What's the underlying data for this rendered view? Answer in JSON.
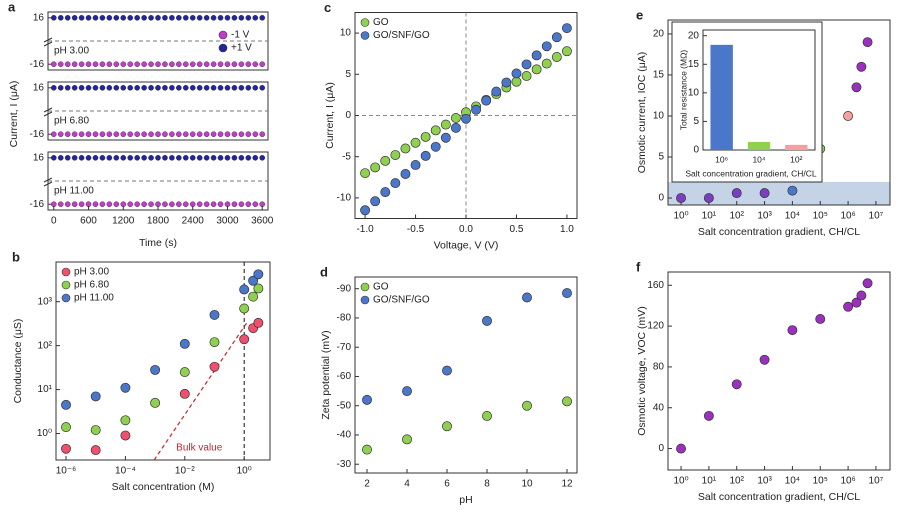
{
  "chart_data": [
    {
      "type": "strips",
      "panel": "a",
      "xlabel": "Time (s)",
      "ylabel": "Current, I (μA)",
      "xlim": [
        -100,
        3700
      ],
      "xticks": [
        0,
        600,
        1200,
        1800,
        2400,
        3000,
        3600
      ],
      "ylim": [
        -20,
        20
      ],
      "yticks": [
        -16,
        16
      ],
      "legend": "upper right",
      "x": [
        0,
        120,
        240,
        360,
        480,
        600,
        720,
        840,
        960,
        1080,
        1200,
        1320,
        1440,
        1560,
        1680,
        1800,
        1920,
        2040,
        2160,
        2280,
        2400,
        2520,
        2640,
        2760,
        2880,
        3000,
        3120,
        3240,
        3360,
        3480,
        3600
      ],
      "series": [
        {
          "name": "-1 V",
          "color": "#c23ccb"
        },
        {
          "name": "+1 V",
          "color": "#24249c"
        }
      ],
      "strips": [
        {
          "label": "pH 3.00",
          "values": [
            [
              -16,
              -16,
              -16,
              -16,
              -16,
              -16,
              -16,
              -16,
              -16,
              -16,
              -16,
              -16,
              -16,
              -16,
              -16,
              -16,
              -16,
              -16,
              -16,
              -16,
              -16,
              -16,
              -16,
              -16,
              -16,
              -16,
              -16,
              -16,
              -16,
              -16,
              -16
            ],
            [
              16,
              16,
              16,
              16,
              16,
              16,
              16,
              16,
              16,
              16,
              16,
              16,
              16,
              16,
              16,
              16,
              16,
              16,
              16,
              16,
              16,
              16,
              16,
              16,
              16,
              16,
              16,
              16,
              16,
              16,
              16
            ]
          ]
        },
        {
          "label": "pH 6.80",
          "values": [
            [
              -16,
              -16,
              -16,
              -16,
              -16,
              -16,
              -16,
              -16,
              -16,
              -16,
              -16,
              -16,
              -16,
              -16,
              -16,
              -16,
              -16,
              -16,
              -16,
              -16,
              -16,
              -16,
              -16,
              -16,
              -16,
              -16,
              -16,
              -16,
              -16,
              -16,
              -16
            ],
            [
              16,
              16,
              16,
              16,
              16,
              16,
              16,
              16,
              16,
              16,
              16,
              16,
              16,
              16,
              16,
              16,
              16,
              16,
              16,
              16,
              16,
              16,
              16,
              16,
              16,
              16,
              16,
              16,
              16,
              16,
              16
            ]
          ]
        },
        {
          "label": "pH 11.00",
          "values": [
            [
              -16,
              -16,
              -16,
              -16,
              -16,
              -16,
              -16,
              -16,
              -16,
              -16,
              -16,
              -16,
              -16,
              -16,
              -16,
              -16,
              -16,
              -16,
              -16,
              -16,
              -16,
              -16,
              -16,
              -16,
              -16,
              -16,
              -16,
              -16,
              -16,
              -16,
              -16
            ],
            [
              16,
              16,
              16,
              16,
              16,
              16,
              16,
              16,
              16,
              16,
              16,
              16,
              16,
              16,
              16,
              16,
              16,
              16,
              16,
              16,
              16,
              16,
              16,
              16,
              16,
              16,
              16,
              16,
              16,
              16,
              16
            ]
          ]
        }
      ]
    },
    {
      "type": "scatter",
      "panel": "b",
      "xlabel": "Salt concentration (M)",
      "ylabel": "Conductance (μS)",
      "xlog": true,
      "ylog": true,
      "xlim": [
        4.6e-07,
        7.4
      ],
      "ylim": [
        0.25,
        8000
      ],
      "xticks": [
        {
          "value": 1e-06,
          "label": "10⁻⁶"
        },
        {
          "value": 0.0001,
          "label": "10⁻⁴"
        },
        {
          "value": 0.01,
          "label": "10⁻²"
        },
        {
          "value": 1,
          "label": "10⁰"
        }
      ],
      "yticks": [
        {
          "value": 1,
          "label": "10⁰"
        },
        {
          "value": 10,
          "label": "10¹"
        },
        {
          "value": 100,
          "label": "10²"
        },
        {
          "value": 1000,
          "label": "10³"
        }
      ],
      "legend": "upper left",
      "vlines": [
        1
      ],
      "x": [
        1e-06,
        1e-05,
        0.0001,
        0.001,
        0.01,
        0.1,
        1,
        2,
        3
      ],
      "series": [
        {
          "name": "pH 3.00",
          "color": "#f0506e",
          "values": [
            0.45,
            0.42,
            0.9,
            null,
            8,
            33,
            140,
            250,
            330
          ]
        },
        {
          "name": "pH 6.80",
          "color": "#8fd14f",
          "values": [
            1.4,
            1.2,
            2,
            5,
            25,
            120,
            700,
            1300,
            2000
          ]
        },
        {
          "name": "pH 11.00",
          "color": "#4a77c9",
          "values": [
            4.5,
            7,
            11,
            28,
            110,
            500,
            1900,
            3000,
            4200
          ]
        }
      ],
      "lines": [
        {
          "label": "Bulk value",
          "color": "#c0282d",
          "x": [
            0.00093,
            1.2
          ],
          "values": [
            0.25,
            324
          ]
        }
      ]
    },
    {
      "type": "scatter",
      "panel": "c",
      "xlabel": "Voltage, V (V)",
      "ylabel": "Current, I (μA)",
      "xlim": [
        -1.1,
        1.1
      ],
      "ylim": [
        -12.5,
        12.5
      ],
      "xticks": [
        {
          "value": -1,
          "label": "-1.0"
        },
        -0.5,
        {
          "value": 0,
          "label": "0.0"
        },
        0.5,
        {
          "value": 1,
          "label": "1.0"
        }
      ],
      "yticks": [
        -10,
        -5,
        0,
        5,
        10
      ],
      "legend": "upper left",
      "hlines": [
        0
      ],
      "vlines": [
        0
      ],
      "x": [
        -1,
        -0.9,
        -0.8,
        -0.7,
        -0.6,
        -0.5,
        -0.4,
        -0.3,
        -0.2,
        -0.1,
        0,
        0.1,
        0.2,
        0.3,
        0.4,
        0.5,
        0.6,
        0.7,
        0.8,
        0.9,
        1
      ],
      "series": [
        {
          "name": "GO",
          "color": "#8fd14f",
          "values": [
            -7.0,
            -6.3,
            -5.5,
            -4.8,
            -4.0,
            -3.3,
            -2.6,
            -1.8,
            -1.1,
            -0.3,
            0.4,
            1.1,
            1.9,
            2.6,
            3.4,
            4.1,
            4.8,
            5.6,
            6.3,
            7.1,
            7.8
          ]
        },
        {
          "name": "GO/SNF/GO",
          "color": "#4a77c9",
          "values": [
            -11.5,
            -10.4,
            -9.3,
            -8.2,
            -7.1,
            -6.0,
            -4.9,
            -3.8,
            -2.7,
            -1.5,
            -0.4,
            0.7,
            1.8,
            2.9,
            4.0,
            5.1,
            6.2,
            7.3,
            8.4,
            9.5,
            10.6
          ]
        }
      ]
    },
    {
      "type": "scatter",
      "panel": "d",
      "xlabel": "pH",
      "ylabel": "Zeta potential (mV)",
      "xlim": [
        1.4,
        12.5
      ],
      "ylim": [
        -27,
        -94
      ],
      "xticks": [
        2,
        4,
        6,
        8,
        10,
        12
      ],
      "yticks": [
        -30,
        -40,
        -50,
        -60,
        -70,
        -80,
        -90
      ],
      "legend": "upper left",
      "x": [
        2,
        4,
        6,
        8,
        10,
        12
      ],
      "series": [
        {
          "name": "GO",
          "color": "#8fd14f",
          "values": [
            -35,
            -38.5,
            -43,
            -46.5,
            -50,
            -51.5
          ]
        },
        {
          "name": "GO/SNF/GO",
          "color": "#4a77c9",
          "values": [
            -52,
            -55,
            -62,
            -79,
            -87,
            -88.5
          ]
        }
      ]
    },
    {
      "type": "scatter",
      "panel": "e",
      "xlabel": "Salt concentration gradient, CH/CL",
      "ylabel": "Osmotic current, IOC (μA)",
      "xlog": true,
      "xlim": [
        0.34,
        32000000.0
      ],
      "ylim": [
        -0.85,
        21.7
      ],
      "xticks": [
        {
          "value": 1,
          "label": "10⁰"
        },
        {
          "value": 10,
          "label": "10¹"
        },
        {
          "value": 100,
          "label": "10²"
        },
        {
          "value": 1000,
          "label": "10³"
        },
        {
          "value": 10000,
          "label": "10⁴"
        },
        {
          "value": 100000,
          "label": "10⁵"
        },
        {
          "value": 1000000,
          "label": "10⁶"
        },
        {
          "value": 10000000,
          "label": "10⁷"
        }
      ],
      "yticks": [
        0,
        5,
        10,
        15,
        20
      ],
      "x": [
        1,
        10,
        100,
        1000,
        10000,
        100000,
        1000000,
        2000000,
        3000000,
        5000000
      ],
      "series": [
        {
          "color": "#9b2fc0",
          "values": [
            0,
            0,
            0.6,
            0.6,
            0.9,
            6,
            10,
            13.5,
            16,
            19
          ],
          "colors": [
            "#7a3fc0",
            "#7a3fc0",
            "#7a3fc0",
            "#7a3fc0",
            "#4a77c9",
            "#8fd14f",
            "#f4a0a0",
            "#9b2fc0",
            "#9b2fc0",
            "#9b2fc0"
          ]
        }
      ],
      "inset": {
        "type": "bar",
        "ylabel": "Total resistance (MΩ)",
        "xlabel": "Salt concentration gradient, CH/CL",
        "categories": [
          "10⁶",
          "10⁴",
          "10²"
        ],
        "values": [
          18.4,
          1.4,
          0.9
        ],
        "colors": [
          "#4a77c9",
          "#8fd14f",
          "#f4a0a0"
        ],
        "ylim": [
          0,
          21
        ],
        "yticks": [
          0,
          5,
          10,
          15,
          20
        ]
      }
    },
    {
      "type": "scatter",
      "panel": "f",
      "xlabel": "Salt concentration gradient, CH/CL",
      "ylabel": "Osmotic voltage, VOC (mV)",
      "xlog": true,
      "xlim": [
        0.34,
        32000000.0
      ],
      "ylim": [
        -21,
        173
      ],
      "xticks": [
        {
          "value": 1,
          "label": "10⁰"
        },
        {
          "value": 10,
          "label": "10¹"
        },
        {
          "value": 100,
          "label": "10²"
        },
        {
          "value": 1000,
          "label": "10³"
        },
        {
          "value": 10000,
          "label": "10⁴"
        },
        {
          "value": 100000,
          "label": "10⁵"
        },
        {
          "value": 1000000,
          "label": "10⁶"
        },
        {
          "value": 10000000,
          "label": "10⁷"
        }
      ],
      "yticks": [
        0,
        40,
        80,
        120,
        160
      ],
      "x": [
        1,
        10,
        100,
        1000,
        10000,
        100000,
        1000000,
        2000000,
        3000000,
        5000000
      ],
      "series": [
        {
          "color": "#9b2fc0",
          "values": [
            0,
            32,
            63,
            87,
            116,
            127,
            139,
            143,
            150,
            162
          ]
        }
      ]
    }
  ]
}
